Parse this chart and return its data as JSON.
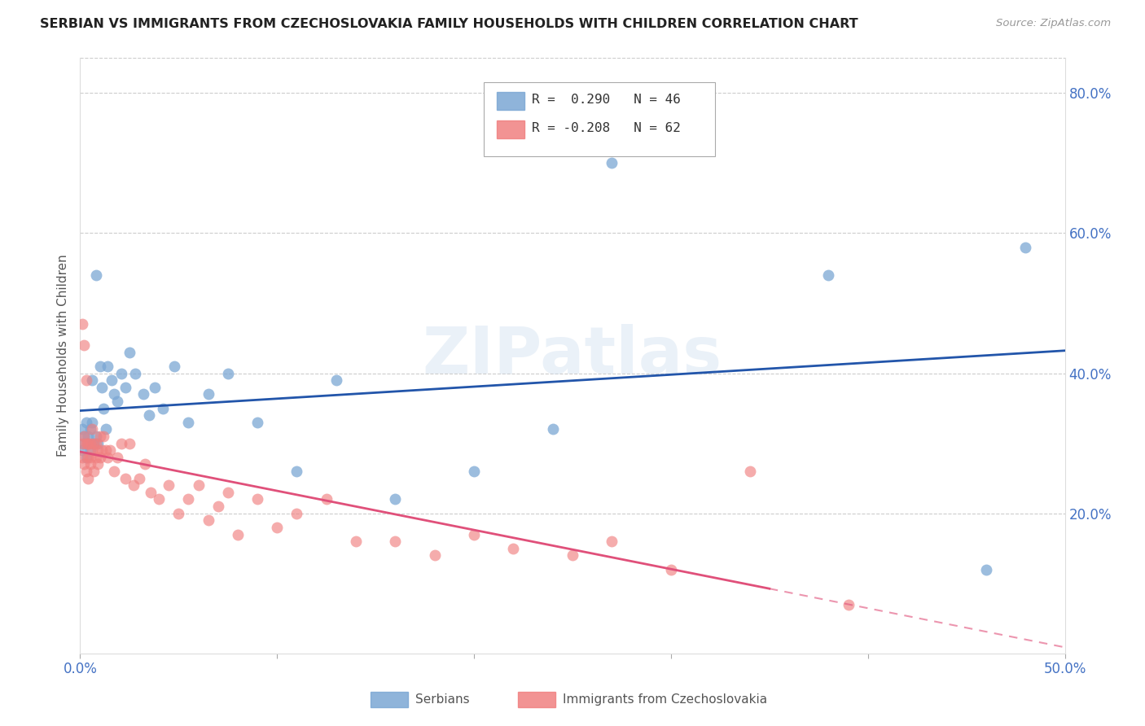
{
  "title": "SERBIAN VS IMMIGRANTS FROM CZECHOSLOVAKIA FAMILY HOUSEHOLDS WITH CHILDREN CORRELATION CHART",
  "source": "Source: ZipAtlas.com",
  "ylabel": "Family Households with Children",
  "xlim": [
    0.0,
    0.5
  ],
  "ylim": [
    0.0,
    0.85
  ],
  "yticks": [
    0.2,
    0.4,
    0.6,
    0.8
  ],
  "ytick_labels": [
    "20.0%",
    "40.0%",
    "60.0%",
    "80.0%"
  ],
  "xtick_labels": [
    "0.0%",
    "",
    "",
    "",
    "",
    "50.0%"
  ],
  "xtick_values": [
    0.0,
    0.1,
    0.2,
    0.3,
    0.4,
    0.5
  ],
  "watermark": "ZIPatlas",
  "serbian_color": "#7BA7D4",
  "czech_color": "#F08080",
  "line_serbian_color": "#2255AA",
  "line_czech_color": "#E0507A",
  "axis_color": "#4472C4",
  "grid_color": "#CCCCCC",
  "serbian_data_x": [
    0.001,
    0.001,
    0.002,
    0.002,
    0.003,
    0.003,
    0.004,
    0.004,
    0.005,
    0.005,
    0.006,
    0.006,
    0.007,
    0.008,
    0.008,
    0.009,
    0.01,
    0.011,
    0.012,
    0.013,
    0.014,
    0.016,
    0.017,
    0.019,
    0.021,
    0.023,
    0.025,
    0.028,
    0.032,
    0.035,
    0.038,
    0.042,
    0.048,
    0.055,
    0.065,
    0.075,
    0.09,
    0.11,
    0.13,
    0.16,
    0.2,
    0.24,
    0.27,
    0.38,
    0.46,
    0.48
  ],
  "serbian_data_y": [
    0.32,
    0.29,
    0.31,
    0.3,
    0.33,
    0.28,
    0.31,
    0.3,
    0.32,
    0.29,
    0.39,
    0.33,
    0.3,
    0.31,
    0.54,
    0.3,
    0.41,
    0.38,
    0.35,
    0.32,
    0.41,
    0.39,
    0.37,
    0.36,
    0.4,
    0.38,
    0.43,
    0.4,
    0.37,
    0.34,
    0.38,
    0.35,
    0.41,
    0.33,
    0.37,
    0.4,
    0.33,
    0.26,
    0.39,
    0.22,
    0.26,
    0.32,
    0.7,
    0.54,
    0.12,
    0.58
  ],
  "czech_data_x": [
    0.001,
    0.001,
    0.001,
    0.002,
    0.002,
    0.002,
    0.003,
    0.003,
    0.003,
    0.004,
    0.004,
    0.004,
    0.005,
    0.005,
    0.005,
    0.006,
    0.006,
    0.007,
    0.007,
    0.008,
    0.008,
    0.009,
    0.009,
    0.01,
    0.01,
    0.011,
    0.012,
    0.013,
    0.014,
    0.015,
    0.017,
    0.019,
    0.021,
    0.023,
    0.025,
    0.027,
    0.03,
    0.033,
    0.036,
    0.04,
    0.045,
    0.05,
    0.055,
    0.06,
    0.065,
    0.07,
    0.075,
    0.08,
    0.09,
    0.1,
    0.11,
    0.125,
    0.14,
    0.16,
    0.18,
    0.2,
    0.22,
    0.25,
    0.27,
    0.3,
    0.34,
    0.39
  ],
  "czech_data_y": [
    0.47,
    0.3,
    0.28,
    0.44,
    0.31,
    0.27,
    0.39,
    0.3,
    0.26,
    0.3,
    0.28,
    0.25,
    0.3,
    0.28,
    0.27,
    0.32,
    0.29,
    0.3,
    0.26,
    0.3,
    0.28,
    0.29,
    0.27,
    0.31,
    0.28,
    0.29,
    0.31,
    0.29,
    0.28,
    0.29,
    0.26,
    0.28,
    0.3,
    0.25,
    0.3,
    0.24,
    0.25,
    0.27,
    0.23,
    0.22,
    0.24,
    0.2,
    0.22,
    0.24,
    0.19,
    0.21,
    0.23,
    0.17,
    0.22,
    0.18,
    0.2,
    0.22,
    0.16,
    0.16,
    0.14,
    0.17,
    0.15,
    0.14,
    0.16,
    0.12,
    0.26,
    0.07
  ]
}
